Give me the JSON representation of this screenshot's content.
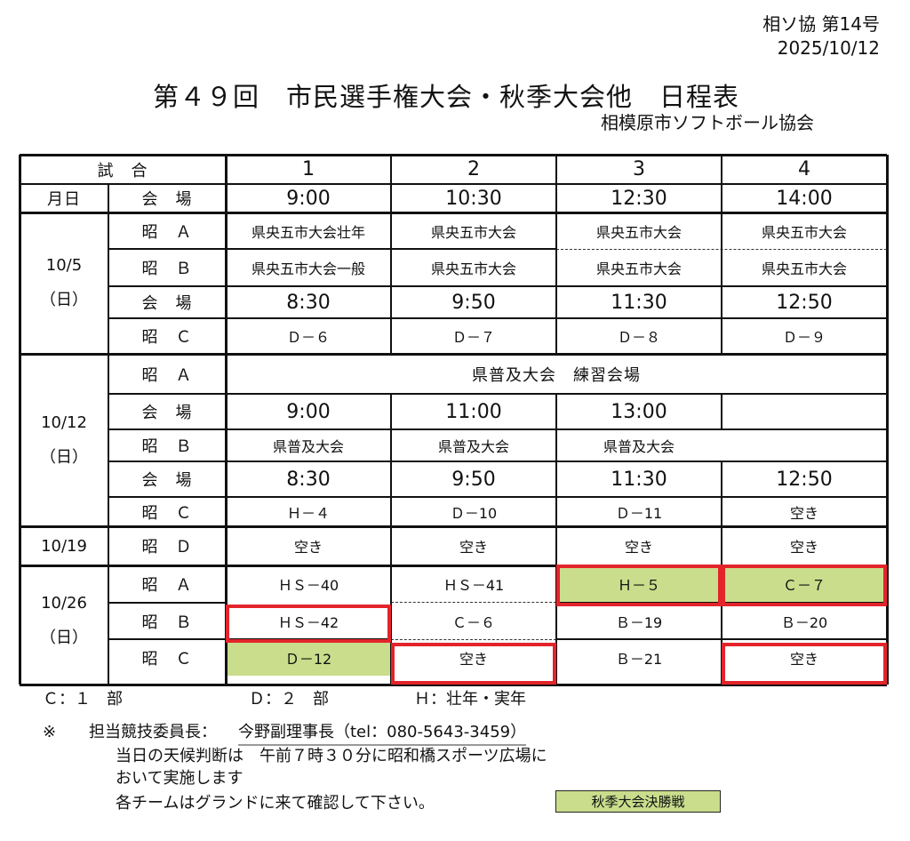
{
  "header": {
    "doc_number": "相ソ協 第14号",
    "date": "2025/10/12",
    "title": "第４９回　市民選手権大会・秋季大会他　日程表",
    "organization": "相模原市ソフトボール協会"
  },
  "table": {
    "col_header": [
      "試　合",
      "1",
      "2",
      "3",
      "4"
    ],
    "row2": {
      "a": "月日",
      "b": "会　場",
      "times": [
        "9:00",
        "10:30",
        "12:30",
        "14:00"
      ]
    },
    "oct5": {
      "date": "10/5",
      "dow": "（日）",
      "rows": [
        {
          "label": "昭　Ａ",
          "cells": [
            "県央五市大会壮年",
            "県央五市大会",
            "県央五市大会",
            "県央五市大会"
          ]
        },
        {
          "label": "昭　Ｂ",
          "cells": [
            "県央五市大会一般",
            "県央五市大会",
            "県央五市大会",
            "県央五市大会"
          ]
        },
        {
          "label": "会　場",
          "cells": [
            "8:30",
            "9:50",
            "11:30",
            "12:50"
          ]
        },
        {
          "label": "昭　Ｃ",
          "cells": [
            "Ｄ－６",
            "Ｄ－７",
            "Ｄ－８",
            "Ｄ－９"
          ]
        }
      ]
    },
    "oct12": {
      "date": "10/12",
      "dow": "（日）",
      "rows": [
        {
          "label": "昭　Ａ",
          "cells": [
            "県普及大会　練習会場"
          ]
        },
        {
          "label": "会　場",
          "cells": [
            "9:00",
            "11:00",
            "13:00",
            ""
          ]
        },
        {
          "label": "昭　Ｂ",
          "cells": [
            "県普及大会",
            "県普及大会",
            "県普及大会",
            ""
          ]
        },
        {
          "label": "会　場",
          "cells": [
            "8:30",
            "9:50",
            "11:30",
            "12:50"
          ]
        },
        {
          "label": "昭　Ｃ",
          "cells": [
            "Ｈ－４",
            "Ｄ－10",
            "Ｄ－11",
            "空き"
          ]
        }
      ]
    },
    "oct19": {
      "date": "10/19",
      "rows": [
        {
          "label": "昭　Ｄ",
          "cells": [
            "空き",
            "空き",
            "空き",
            "空き"
          ]
        }
      ]
    },
    "oct26": {
      "date": "10/26",
      "dow": "（日）",
      "rows": [
        {
          "label": "昭　Ａ",
          "cells": [
            "ＨＳ－40",
            "ＨＳ－41",
            "Ｈ－５",
            "Ｃ－７"
          ]
        },
        {
          "label": "昭　Ｂ",
          "cells": [
            "ＨＳ－42",
            "Ｃ－６",
            "Ｂ－19",
            "Ｂ－20"
          ]
        },
        {
          "label": "昭　Ｃ",
          "cells": [
            "Ｄ－12",
            "空き",
            "Ｂ－21",
            "空き"
          ]
        }
      ]
    }
  },
  "legend": {
    "c": "Ｃ：１　部",
    "d": "Ｄ：２　部",
    "h": "Ｈ：壮年・実年"
  },
  "notes": {
    "mark": "※",
    "line1_label": "担当競技委員長：",
    "line1_value": "今野副理事長（tel：080-5643-3459）",
    "line2": "当日の天候判断は　午前７時３０分に昭和橋スポーツ広場に",
    "line3": "おいて実施します",
    "line4": "各チームはグランドに来て確認して下さい。"
  },
  "final_legend": "秋季大会決勝戦",
  "colors": {
    "final_fill": "#c9dd8c",
    "highlight_border": "#e3242b"
  }
}
